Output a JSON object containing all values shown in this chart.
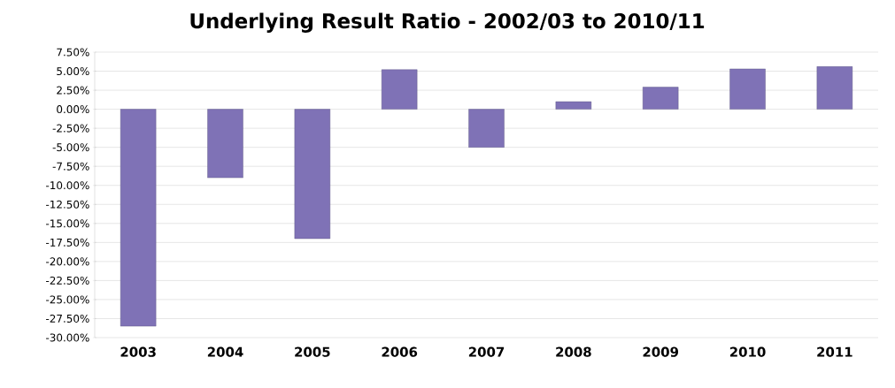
{
  "chart_data": {
    "type": "bar",
    "title": "Underlying Result Ratio - 2002/03 to 2010/11",
    "categories": [
      "2003",
      "2004",
      "2005",
      "2006",
      "2007",
      "2008",
      "2009",
      "2010",
      "2011"
    ],
    "values": [
      -28.5,
      -9.0,
      -17.0,
      5.2,
      -5.0,
      1.0,
      2.9,
      5.3,
      5.6
    ],
    "color": "#7f72b6",
    "ylim": [
      -30,
      7.5
    ],
    "yticks": [
      {
        "value": 7.5,
        "label": "7.50%"
      },
      {
        "value": 5,
        "label": "5.00%"
      },
      {
        "value": 2.5,
        "label": "2.50%"
      },
      {
        "value": 0,
        "label": "0.00%"
      },
      {
        "value": -2.5,
        "label": "-2.50%"
      },
      {
        "value": -5,
        "label": "-5.00%"
      },
      {
        "value": -7.5,
        "label": "-7.50%"
      },
      {
        "value": -10,
        "label": "-10.00%"
      },
      {
        "value": -12.5,
        "label": "-12.50%"
      },
      {
        "value": -15,
        "label": "-15.00%"
      },
      {
        "value": -17.5,
        "label": "-17.50%"
      },
      {
        "value": -20,
        "label": "-20.00%"
      },
      {
        "value": -22.5,
        "label": "-22.50%"
      },
      {
        "value": -25,
        "label": "-25.00%"
      },
      {
        "value": -27.5,
        "label": "-27.50%"
      },
      {
        "value": -30,
        "label": "-30.00%"
      }
    ],
    "grid": "y"
  }
}
